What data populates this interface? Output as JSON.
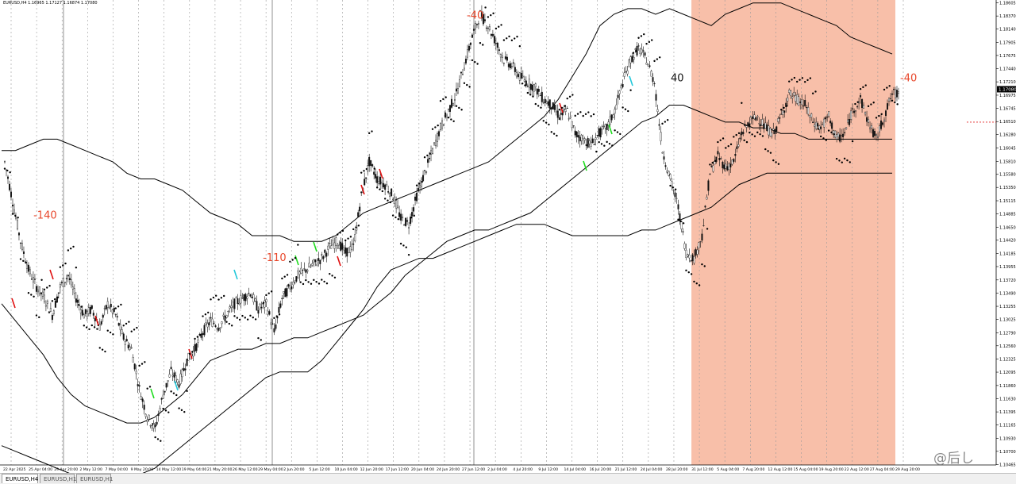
{
  "window": {
    "title": "EURUSD,H4  1.16965 1.17127 1.16874 1.17080"
  },
  "tabs": [
    {
      "label": "EURUSD,H4",
      "active": true
    },
    {
      "label": "EURUSD,H1",
      "active": false
    },
    {
      "label": "EURUSD,H1",
      "active": false
    }
  ],
  "watermark": "@后し",
  "colors": {
    "highlight": "#f7b49a",
    "bull_signal": "#1fdc1f",
    "bear_signal": "#e01010",
    "cyan_signal": "#22c7d9",
    "annotation": "#e8462a",
    "current_price_line": "#e02020",
    "price_label_bg": "#000000"
  },
  "chart_data": {
    "type": "line",
    "symbol": "EURUSD",
    "timeframe": "H4",
    "grid": true,
    "ylim": [
      1.1046,
      1.1861
    ],
    "y_ticks": [
      "1.18605",
      "1.18370",
      "1.18140",
      "1.17905",
      "1.17675",
      "1.17440",
      "1.17210",
      "1.16975",
      "1.16745",
      "1.16510",
      "1.16280",
      "1.16045",
      "1.15810",
      "1.15580",
      "1.15350",
      "1.15115",
      "1.14885",
      "1.14650",
      "1.14420",
      "1.14185",
      "1.13955",
      "1.13720",
      "1.13490",
      "1.13255",
      "1.13025",
      "1.12790",
      "1.12560",
      "1.12325",
      "1.12095",
      "1.11860",
      "1.11630",
      "1.11395",
      "1.11165",
      "1.10930",
      "1.10700",
      "1.10465"
    ],
    "x_ticks": [
      "22 Apr 2025",
      "25 Apr 04:00",
      "29 Apr 20:00",
      "2 May 12:00",
      "7 May 04:00",
      "9 May 20:00",
      "14 May 12:00",
      "19 May 04:00",
      "21 May 20:00",
      "26 May 12:00",
      "29 May 04:00",
      "2 Jun 20:00",
      "5 Jun 12:00",
      "10 Jun 04:00",
      "12 Jun 20:00",
      "17 Jun 12:00",
      "20 Jun 04:00",
      "24 Jun 20:00",
      "27 Jun 12:00",
      "2 Jul 04:00",
      "4 Jul 20:00",
      "9 Jul 12:00",
      "14 Jul 04:00",
      "16 Jul 20:00",
      "21 Jul 12:00",
      "24 Jul 04:00",
      "28 Jul 20:00",
      "31 Jul 12:00",
      "5 Aug 04:00",
      "7 Aug 20:00",
      "12 Aug 12:00",
      "15 Aug 04:00",
      "19 Aug 20:00",
      "22 Aug 12:00",
      "27 Aug 04:00",
      "29 Aug 20:00"
    ],
    "current_price": "1.17080",
    "series": [
      {
        "values": [
          1.158,
          1.151,
          1.144,
          1.139,
          1.136,
          1.134,
          1.131,
          1.136,
          1.138,
          1.134,
          1.131,
          1.132,
          1.129,
          1.133,
          1.131,
          1.127,
          1.125,
          1.118,
          1.113,
          1.111,
          1.117,
          1.121,
          1.119,
          1.123,
          1.125,
          1.128,
          1.13,
          1.129,
          1.131,
          1.133,
          1.134,
          1.135,
          1.132,
          1.133,
          1.128,
          1.134,
          1.136,
          1.138,
          1.139,
          1.14,
          1.141,
          1.143,
          1.144,
          1.142,
          1.143,
          1.152,
          1.158,
          1.155,
          1.154,
          1.152,
          1.148,
          1.147,
          1.152,
          1.156,
          1.16,
          1.164,
          1.167,
          1.17,
          1.175,
          1.18,
          1.184,
          1.182,
          1.179,
          1.176,
          1.175,
          1.173,
          1.172,
          1.171,
          1.169,
          1.168,
          1.166,
          1.167,
          1.163,
          1.162,
          1.161,
          1.163,
          1.164,
          1.167,
          1.172,
          1.176,
          1.178,
          1.176,
          1.172,
          1.16,
          1.155,
          1.15,
          1.142,
          1.141,
          1.145,
          1.156,
          1.159,
          1.157,
          1.158,
          1.163,
          1.165,
          1.166,
          1.164,
          1.163,
          1.166,
          1.17,
          1.169,
          1.168,
          1.165,
          1.164,
          1.166,
          1.162,
          1.163,
          1.167,
          1.169,
          1.165,
          1.162,
          1.166,
          1.17
        ]
      },
      {
        "values": [
          1.16,
          1.16,
          1.161,
          1.162,
          1.162,
          1.161,
          1.16,
          1.159,
          1.158,
          1.156,
          1.155,
          1.155,
          1.154,
          1.153,
          1.151,
          1.149,
          1.148,
          1.147,
          1.145,
          1.145,
          1.145,
          1.144,
          1.144,
          1.144,
          1.145,
          1.147,
          1.149,
          1.15,
          1.151,
          1.152,
          1.153,
          1.154,
          1.155,
          1.156,
          1.157,
          1.158,
          1.16,
          1.162,
          1.164,
          1.166,
          1.169,
          1.173,
          1.177,
          1.182,
          1.184,
          1.185,
          1.185,
          1.184,
          1.185,
          1.184,
          1.183,
          1.182,
          1.184,
          1.185,
          1.186,
          1.186,
          1.186,
          1.185,
          1.184,
          1.183,
          1.182,
          1.18,
          1.179,
          1.178,
          1.177
        ]
      },
      {
        "values": [
          1.133,
          1.13,
          1.127,
          1.124,
          1.12,
          1.117,
          1.115,
          1.114,
          1.113,
          1.112,
          1.112,
          1.113,
          1.115,
          1.117,
          1.12,
          1.123,
          1.124,
          1.125,
          1.125,
          1.126,
          1.126,
          1.127,
          1.127,
          1.128,
          1.129,
          1.13,
          1.131,
          1.133,
          1.135,
          1.138,
          1.14,
          1.142,
          1.144,
          1.145,
          1.146,
          1.146,
          1.147,
          1.148,
          1.149,
          1.151,
          1.153,
          1.155,
          1.157,
          1.159,
          1.161,
          1.163,
          1.165,
          1.166,
          1.168,
          1.168,
          1.167,
          1.166,
          1.165,
          1.165,
          1.164,
          1.164,
          1.163,
          1.163,
          1.162,
          1.162,
          1.162,
          1.162,
          1.162,
          1.162,
          1.162
        ]
      },
      {
        "values": [
          1.108,
          1.107,
          1.106,
          1.105,
          1.104,
          1.103,
          1.103,
          1.102,
          1.102,
          1.102,
          1.103,
          1.104,
          1.106,
          1.108,
          1.11,
          1.112,
          1.114,
          1.116,
          1.118,
          1.12,
          1.121,
          1.121,
          1.121,
          1.123,
          1.126,
          1.129,
          1.132,
          1.136,
          1.139,
          1.14,
          1.141,
          1.141,
          1.142,
          1.143,
          1.144,
          1.145,
          1.146,
          1.147,
          1.147,
          1.147,
          1.146,
          1.145,
          1.145,
          1.145,
          1.145,
          1.145,
          1.146,
          1.146,
          1.147,
          1.148,
          1.149,
          1.15,
          1.152,
          1.154,
          1.155,
          1.156,
          1.156,
          1.156,
          1.156,
          1.156,
          1.156,
          1.156,
          1.156,
          1.156,
          1.156
        ]
      }
    ],
    "highlight_region": {
      "from": "31 Jul 12:00",
      "to": "29 Aug 20:00"
    },
    "annotations": [
      {
        "text": "-140",
        "color": "#e8462a",
        "x": "25 Apr 04:00",
        "y": 1.148
      },
      {
        "text": "-110",
        "color": "#e8462a",
        "x": "29 May 04:00",
        "y": 1.1405
      },
      {
        "text": "-40",
        "color": "#e8462a",
        "x": "27 Jun 12:00",
        "y": 1.1832
      },
      {
        "text": "40",
        "color": "#111111",
        "x": "28 Jul 20:00",
        "y": 1.1722
      },
      {
        "text": "-40",
        "color": "#e8462a",
        "x": "29 Aug 20:00",
        "y": 1.1722
      }
    ]
  }
}
